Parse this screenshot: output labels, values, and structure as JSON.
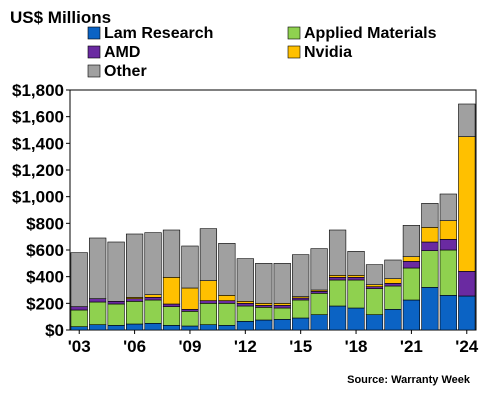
{
  "header": {
    "units_title": "US$ Millions"
  },
  "footer": {
    "source": "Source: Warranty Week"
  },
  "colors": {
    "Lam Research": "#0b63c4",
    "Applied Materials": "#8fd14f",
    "AMD": "#6a2aa1",
    "Nvidia": "#ffc000",
    "Other": "#a0a0a0"
  },
  "legend_order": [
    "Lam Research",
    "Applied Materials",
    "AMD",
    "Nvidia",
    "Other"
  ],
  "chart_data": {
    "type": "bar",
    "stacked": true,
    "title": "",
    "xlabel": "",
    "ylabel": "US$ Millions",
    "ylim": [
      0,
      1800
    ],
    "yticks": [
      0,
      200,
      400,
      600,
      800,
      1000,
      1200,
      1400,
      1600,
      1800
    ],
    "ytick_labels": [
      "$0",
      "$200",
      "$400",
      "$600",
      "$800",
      "$1,000",
      "$1,200",
      "$1,400",
      "$1,600",
      "$1,800"
    ],
    "categories": [
      "2003",
      "2004",
      "2005",
      "2006",
      "2007",
      "2008",
      "2009",
      "2010",
      "2011",
      "2012",
      "2013",
      "2014",
      "2015",
      "2016",
      "2017",
      "2018",
      "2019",
      "2020",
      "2021",
      "2022",
      "2023",
      "2024"
    ],
    "xtick_labels": [
      {
        "category": "2003",
        "label": "'03"
      },
      {
        "category": "2006",
        "label": "'06"
      },
      {
        "category": "2009",
        "label": "'09"
      },
      {
        "category": "2012",
        "label": "'12"
      },
      {
        "category": "2015",
        "label": "'15"
      },
      {
        "category": "2018",
        "label": "'18"
      },
      {
        "category": "2021",
        "label": "'21"
      },
      {
        "category": "2024",
        "label": "'24"
      }
    ],
    "legend_position": "top",
    "grid": false,
    "series": [
      {
        "name": "Lam Research",
        "values": [
          25,
          40,
          35,
          45,
          50,
          35,
          30,
          40,
          35,
          65,
          75,
          80,
          90,
          115,
          180,
          165,
          115,
          155,
          225,
          320,
          260,
          255
        ]
      },
      {
        "name": "Applied Materials",
        "values": [
          125,
          170,
          160,
          170,
          175,
          140,
          110,
          160,
          165,
          115,
          95,
          85,
          135,
          160,
          195,
          210,
          195,
          175,
          240,
          275,
          340,
          0
        ]
      },
      {
        "name": "AMD",
        "values": [
          25,
          25,
          20,
          20,
          20,
          20,
          15,
          20,
          20,
          20,
          15,
          20,
          15,
          15,
          20,
          20,
          15,
          20,
          50,
          65,
          80,
          185
        ]
      },
      {
        "name": "Nvidia",
        "values": [
          0,
          0,
          0,
          10,
          20,
          200,
          160,
          150,
          40,
          15,
          15,
          15,
          10,
          10,
          15,
          15,
          15,
          35,
          35,
          110,
          140,
          1010
        ]
      },
      {
        "name": "Other",
        "values": [
          405,
          455,
          445,
          475,
          465,
          355,
          315,
          390,
          390,
          320,
          300,
          300,
          315,
          310,
          340,
          180,
          150,
          140,
          235,
          180,
          200,
          245
        ]
      }
    ]
  }
}
